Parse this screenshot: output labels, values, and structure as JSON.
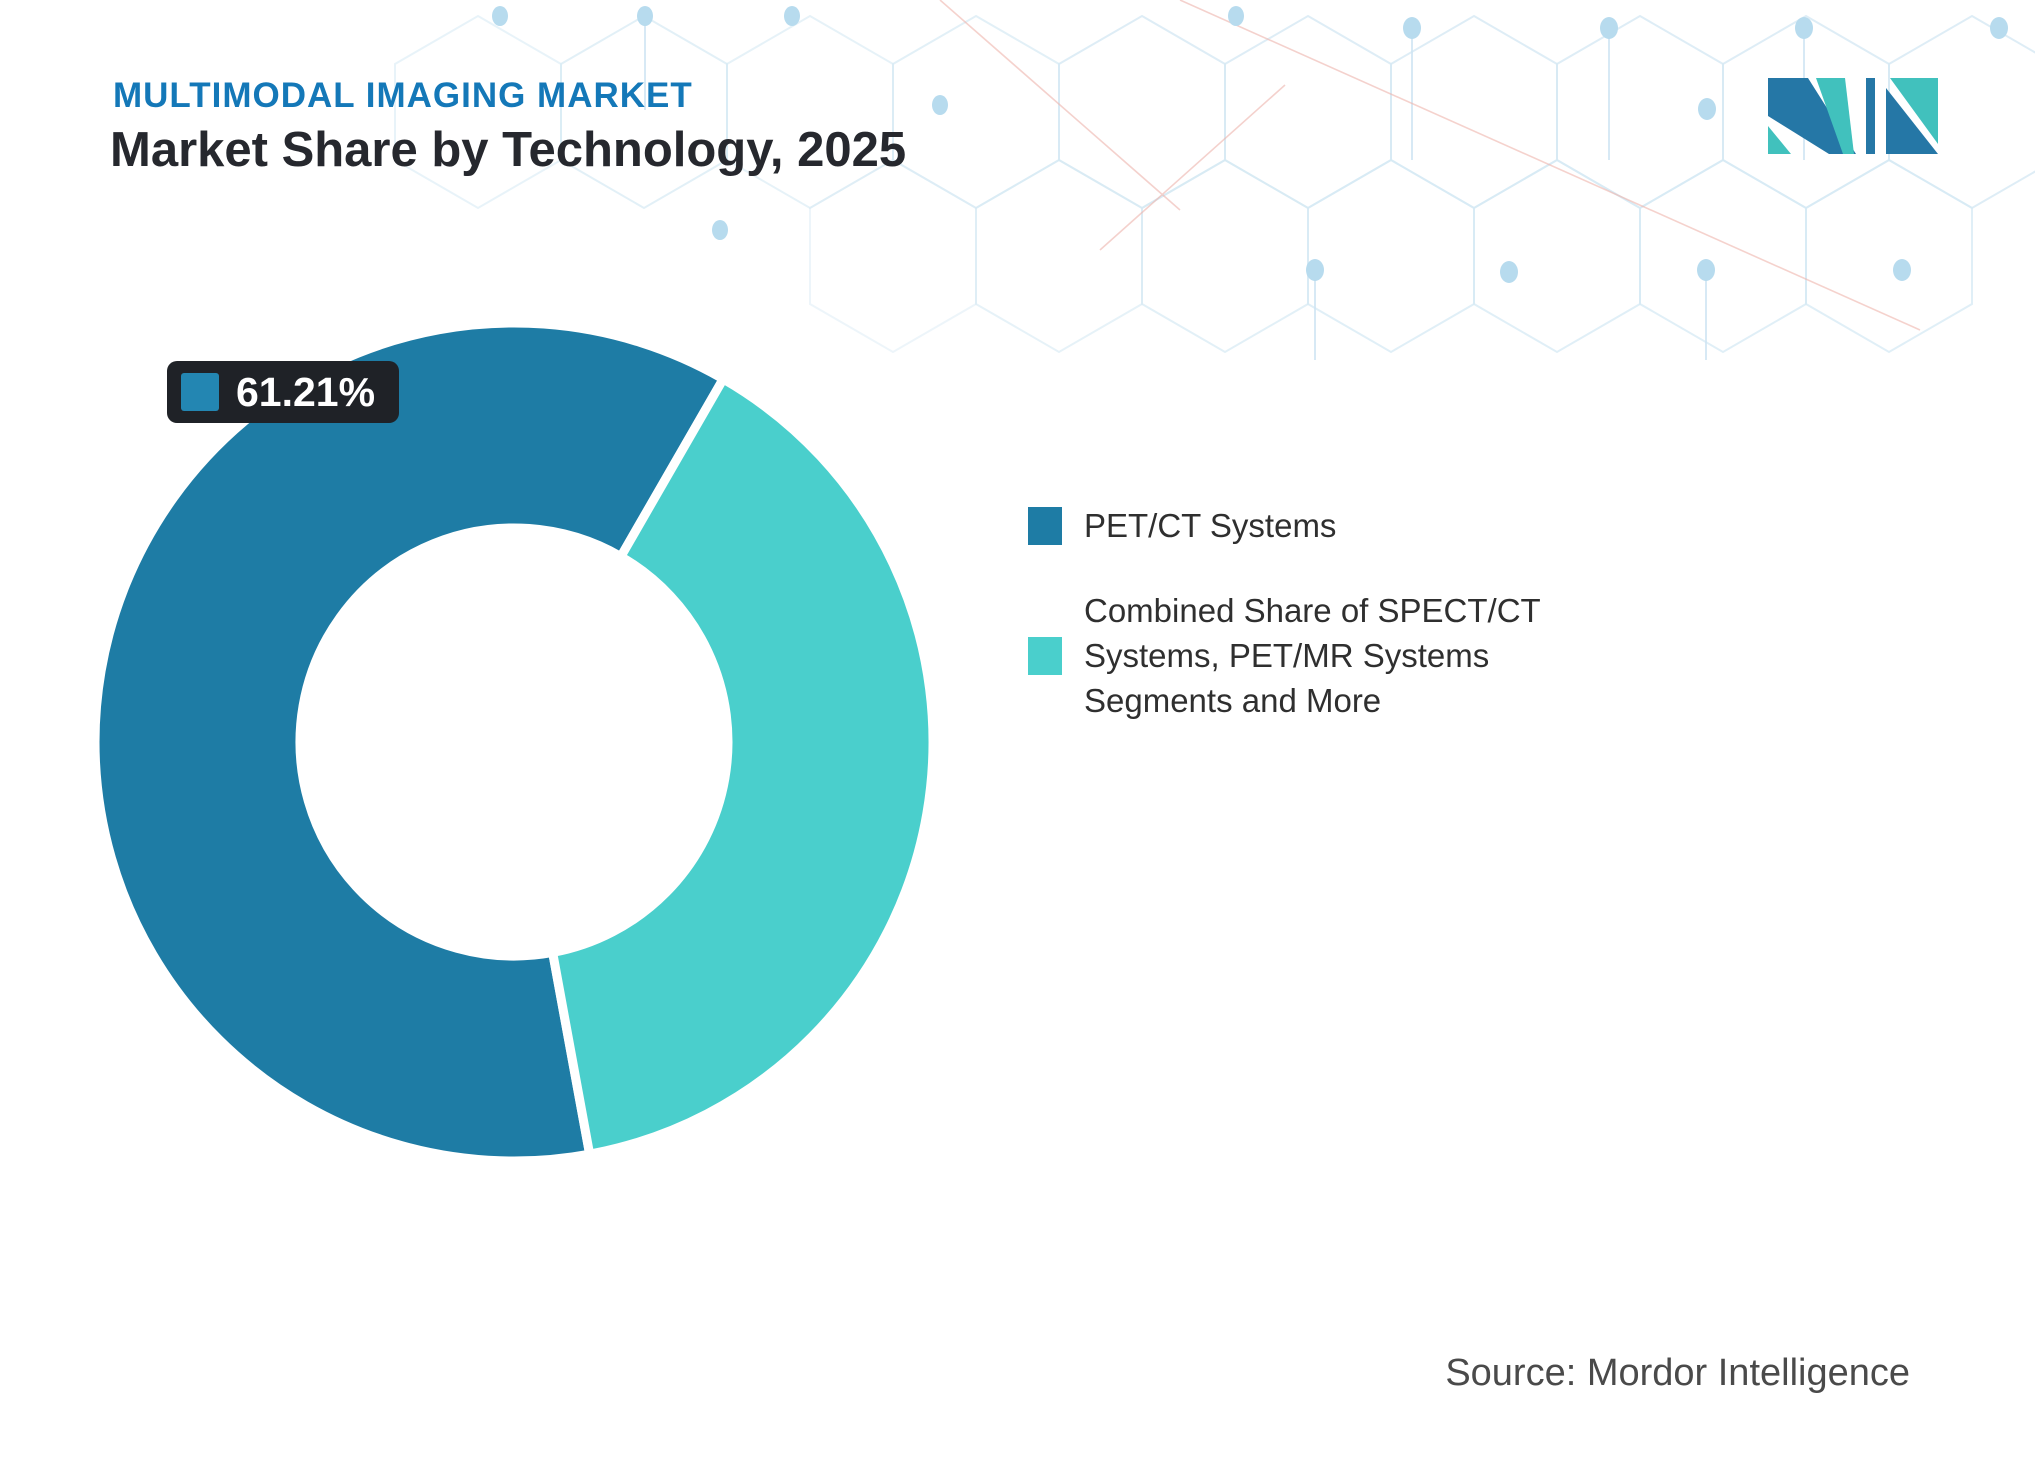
{
  "header": {
    "eyebrow": "MULTIMODAL IMAGING MARKET",
    "title": "Market Share by Technology, 2025"
  },
  "logo": {
    "name": "mordor-intelligence-logo",
    "blue": "#2577A6",
    "teal": "#41C1BD"
  },
  "badge": {
    "value": "61.21%",
    "swatch_color": "#2386B2",
    "background": "#1F2227"
  },
  "legend": {
    "items": [
      {
        "label": "PET/CT Systems",
        "color": "#1E7CA5"
      },
      {
        "label": "Combined Share of SPECT/CT Systems, PET/MR Systems Segments and More",
        "color": "#4ACFCC",
        "lines": [
          "Combined Share of SPECT/CT",
          "Systems, PET/MR Systems",
          "Segments and More"
        ]
      }
    ]
  },
  "source": "Source: Mordor Intelligence",
  "colors": {
    "accent_blue": "#1478B8",
    "dark_text": "#26282E",
    "legend_text": "#2F2F2F",
    "source_text": "#4A4A4A",
    "pattern_line": "#D6E9F4",
    "pattern_dot": "#B7DBEE",
    "pattern_coral": "#EEB4AC"
  },
  "chart_data": {
    "type": "pie",
    "donut": true,
    "title": "Market Share by Technology, 2025",
    "start_angle": 169.6,
    "inner_radius_ratio": 0.51,
    "legend_position": "right",
    "series": [
      {
        "name": "PET/CT Systems",
        "value": 61.21,
        "color": "#1E7CA5"
      },
      {
        "name": "Combined Share of SPECT/CT Systems, PET/MR Systems Segments and More",
        "value": 38.79,
        "color": "#4ACFCC"
      }
    ],
    "annotations": [
      {
        "text": "61.21%",
        "target": "PET/CT Systems"
      }
    ]
  }
}
